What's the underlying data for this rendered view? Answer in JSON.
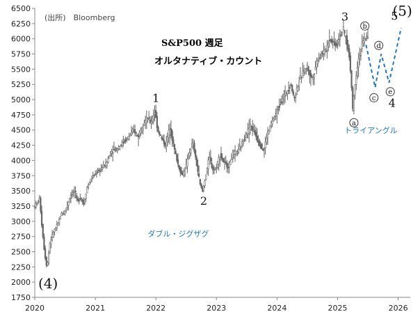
{
  "chart_data": {
    "type": "candlestick",
    "source_label": "(出所)　Bloomberg",
    "title": "S&P500 週足",
    "subtitle": "オルタナティブ・カウント",
    "xlabel": "",
    "ylabel": "",
    "ylim": [
      1750,
      6500
    ],
    "xlim": [
      2020.0,
      2026.2
    ],
    "y_ticks": [
      "1750",
      "2000",
      "2250",
      "2500",
      "2750",
      "3000",
      "3250",
      "3500",
      "3750",
      "4000",
      "4250",
      "4500",
      "4750",
      "5000",
      "5250",
      "5500",
      "5750",
      "6000",
      "6250",
      "6500"
    ],
    "x_ticks": [
      "2020",
      "2021",
      "2022",
      "2023",
      "2024",
      "2025",
      "2026"
    ],
    "grid": false,
    "legend": "none",
    "colors": {
      "candles": "#666666",
      "projection": "#1f77c4"
    },
    "price_path": [
      [
        2020.0,
        3230
      ],
      [
        2020.05,
        3290
      ],
      [
        2020.1,
        3370
      ],
      [
        2020.13,
        3000
      ],
      [
        2020.18,
        2480
      ],
      [
        2020.22,
        2237
      ],
      [
        2020.27,
        2650
      ],
      [
        2020.33,
        2830
      ],
      [
        2020.4,
        2950
      ],
      [
        2020.45,
        3120
      ],
      [
        2020.5,
        3130
      ],
      [
        2020.55,
        3250
      ],
      [
        2020.62,
        3450
      ],
      [
        2020.68,
        3500
      ],
      [
        2020.72,
        3320
      ],
      [
        2020.78,
        3400
      ],
      [
        2020.83,
        3280
      ],
      [
        2020.88,
        3550
      ],
      [
        2020.95,
        3700
      ],
      [
        2021.0,
        3760
      ],
      [
        2021.1,
        3850
      ],
      [
        2021.2,
        3950
      ],
      [
        2021.28,
        4150
      ],
      [
        2021.38,
        4200
      ],
      [
        2021.48,
        4300
      ],
      [
        2021.58,
        4400
      ],
      [
        2021.66,
        4500
      ],
      [
        2021.72,
        4380
      ],
      [
        2021.8,
        4600
      ],
      [
        2021.88,
        4690
      ],
      [
        2021.93,
        4620
      ],
      [
        2022.0,
        4800
      ],
      [
        2022.05,
        4500
      ],
      [
        2022.12,
        4350
      ],
      [
        2022.18,
        4250
      ],
      [
        2022.25,
        4550
      ],
      [
        2022.32,
        4200
      ],
      [
        2022.38,
        3950
      ],
      [
        2022.45,
        3750
      ],
      [
        2022.5,
        3850
      ],
      [
        2022.58,
        4150
      ],
      [
        2022.63,
        4300
      ],
      [
        2022.68,
        4000
      ],
      [
        2022.75,
        3600
      ],
      [
        2022.79,
        3490
      ],
      [
        2022.85,
        3800
      ],
      [
        2022.9,
        4050
      ],
      [
        2022.96,
        3850
      ],
      [
        2023.0,
        3850
      ],
      [
        2023.08,
        4100
      ],
      [
        2023.15,
        3950
      ],
      [
        2023.22,
        3900
      ],
      [
        2023.28,
        4100
      ],
      [
        2023.38,
        4150
      ],
      [
        2023.45,
        4300
      ],
      [
        2023.52,
        4450
      ],
      [
        2023.58,
        4580
      ],
      [
        2023.65,
        4450
      ],
      [
        2023.72,
        4300
      ],
      [
        2023.8,
        4150
      ],
      [
        2023.85,
        4400
      ],
      [
        2023.92,
        4600
      ],
      [
        2024.0,
        4770
      ],
      [
        2024.08,
        4950
      ],
      [
        2024.15,
        5100
      ],
      [
        2024.25,
        5250
      ],
      [
        2024.3,
        5000
      ],
      [
        2024.38,
        5300
      ],
      [
        2024.45,
        5450
      ],
      [
        2024.52,
        5550
      ],
      [
        2024.58,
        5350
      ],
      [
        2024.62,
        5400
      ],
      [
        2024.68,
        5650
      ],
      [
        2024.75,
        5750
      ],
      [
        2024.82,
        5800
      ],
      [
        2024.88,
        6000
      ],
      [
        2024.95,
        5950
      ],
      [
        2025.0,
        5900
      ],
      [
        2025.05,
        6050
      ],
      [
        2025.12,
        6140
      ],
      [
        2025.17,
        5950
      ],
      [
        2025.22,
        5650
      ],
      [
        2025.25,
        5200
      ],
      [
        2025.27,
        4835
      ],
      [
        2025.31,
        5300
      ],
      [
        2025.36,
        5650
      ],
      [
        2025.42,
        5900
      ],
      [
        2025.47,
        6000
      ],
      [
        2025.5,
        6050
      ]
    ],
    "projection_path": [
      [
        2025.47,
        5900
      ],
      [
        2025.62,
        5200
      ],
      [
        2025.72,
        5750
      ],
      [
        2025.85,
        5280
      ],
      [
        2026.05,
        6180
      ]
    ],
    "annotations": [
      {
        "text": "(4)",
        "x": 2020.22,
        "y": 1900,
        "size": "large"
      },
      {
        "text": "1",
        "x": 2022.0,
        "y": 4960,
        "size": "medium"
      },
      {
        "text": "2",
        "x": 2022.79,
        "y": 3270,
        "size": "medium"
      },
      {
        "text": "3",
        "x": 2025.12,
        "y": 6300,
        "size": "medium"
      },
      {
        "text": "4",
        "x": 2025.9,
        "y": 4880,
        "size": "medium"
      },
      {
        "text": "5",
        "x": 2025.94,
        "y": 6310,
        "size": "medium"
      },
      {
        "text": "(5)",
        "x": 2026.07,
        "y": 6380,
        "size": "large"
      }
    ],
    "circle_labels": [
      {
        "text": "a",
        "x": 2025.27,
        "y": 4620
      },
      {
        "text": "b",
        "x": 2025.45,
        "y": 6210
      },
      {
        "text": "c",
        "x": 2025.6,
        "y": 5030
      },
      {
        "text": "d",
        "x": 2025.68,
        "y": 5890
      },
      {
        "text": "e",
        "x": 2025.87,
        "y": 5130
      }
    ],
    "blue_labels": [
      {
        "text": "ダブル・ジグザグ",
        "x": 2022.37,
        "y": 2750
      },
      {
        "text": "トライアングル",
        "x": 2025.55,
        "y": 4450
      }
    ]
  }
}
